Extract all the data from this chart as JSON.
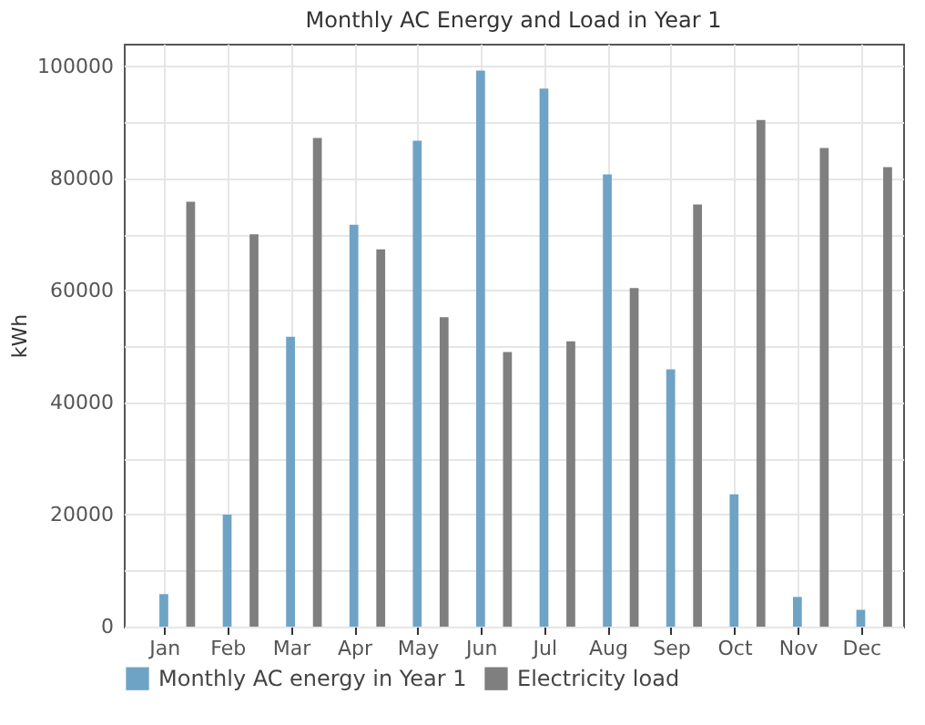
{
  "chart_data": {
    "type": "bar",
    "title": "Monthly AC Energy and Load in Year 1",
    "ylabel": "kWh",
    "categories": [
      "Jan",
      "Feb",
      "Mar",
      "Apr",
      "May",
      "Jun",
      "Jul",
      "Aug",
      "Sep",
      "Oct",
      "Nov",
      "Dec"
    ],
    "series": [
      {
        "name": "Monthly AC energy in Year 1",
        "color": "#6fa3c5",
        "values": [
          5800,
          20000,
          51700,
          71700,
          86700,
          99200,
          96000,
          80700,
          45900,
          23600,
          5300,
          3000
        ]
      },
      {
        "name": "Electricity load",
        "color": "#7f7f7f",
        "values": [
          75800,
          70000,
          87200,
          67300,
          55200,
          49000,
          50900,
          60400,
          75300,
          90400,
          85400,
          82000
        ]
      }
    ],
    "ylim": [
      0,
      104000
    ],
    "yticks": [
      0,
      {
        "value": 10000,
        "label": null
      },
      20000,
      {
        "value": 30000,
        "label": null
      },
      40000,
      {
        "value": 50000,
        "label": null
      },
      60000,
      {
        "value": 70000,
        "label": null
      },
      80000,
      {
        "value": 90000,
        "label": null
      },
      100000
    ],
    "grid": true,
    "legend": "bottom left"
  }
}
